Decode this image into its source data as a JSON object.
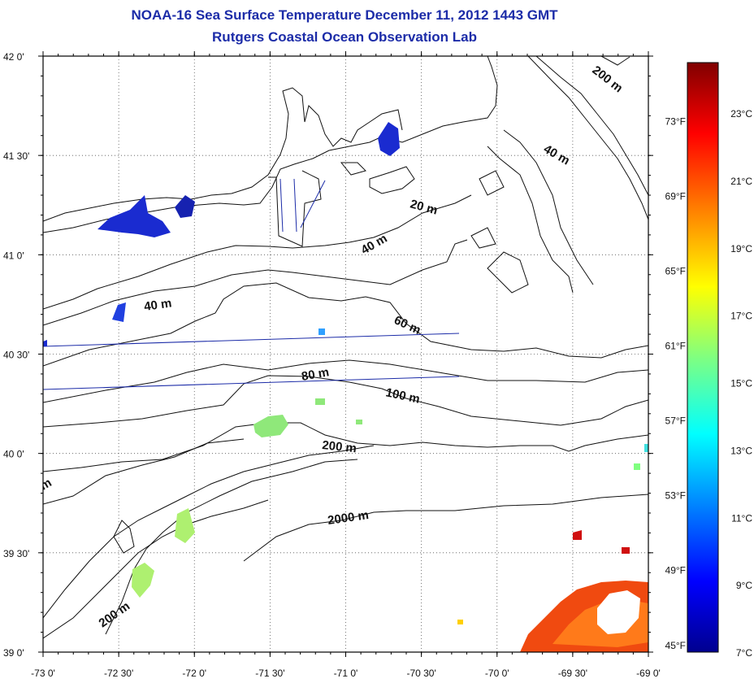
{
  "header": {
    "title": "NOAA-16 Sea Surface Temperature December 11, 2012 1443 GMT",
    "subtitle": "Rutgers Coastal Ocean Observation Lab"
  },
  "map": {
    "lon_ticks": [
      "-73 0'",
      "-72 30'",
      "-72 0'",
      "-71 30'",
      "-71 0'",
      "-70 30'",
      "-70 0'",
      "-69 30'",
      "-69 0'"
    ],
    "lat_ticks": [
      "42 0'",
      "41 30'",
      "41 0'",
      "40 30'",
      "40 0'",
      "39 30'",
      "39 0'"
    ],
    "lon_range": [
      -73,
      -69
    ],
    "lat_range": [
      39,
      42
    ],
    "contour_labels": [
      "200 m",
      "40 m",
      "20 m",
      "40 m",
      "40 m",
      "60 m",
      "80 m",
      "100 m",
      "200 m",
      "2000 m",
      "200 m",
      "m"
    ]
  },
  "colorbar": {
    "celsius_labels": [
      "23°C",
      "21°C",
      "19°C",
      "17°C",
      "15°C",
      "13°C",
      "11°C",
      "9°C",
      "7°C"
    ],
    "fahrenheit_labels": [
      "73°F",
      "69°F",
      "65°F",
      "61°F",
      "57°F",
      "53°F",
      "49°F",
      "45°F"
    ],
    "celsius_values": [
      23,
      21,
      19,
      17,
      15,
      13,
      11,
      9,
      7
    ],
    "fahrenheit_values": [
      73,
      69,
      65,
      61,
      57,
      53,
      49,
      45
    ],
    "range_c": [
      7,
      24.5
    ],
    "colors": [
      "#00008f",
      "#0000ff",
      "#00ffff",
      "#80ff80",
      "#ffff00",
      "#ff8000",
      "#ff0000",
      "#800000"
    ]
  }
}
